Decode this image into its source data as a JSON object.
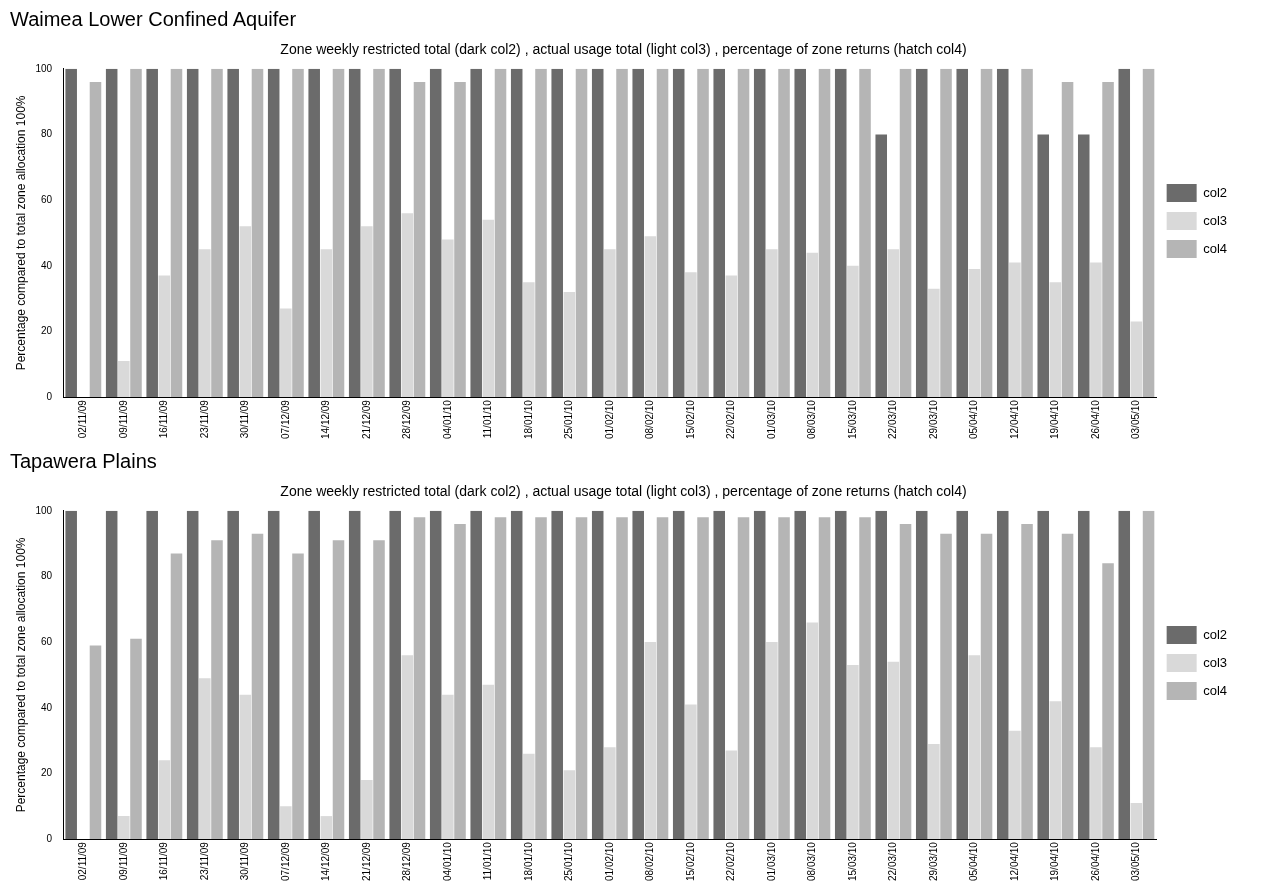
{
  "chart_data": [
    {
      "type": "bar",
      "title": "Waimea Lower Confined Aquifer",
      "subtitle": "Zone weekly restricted total (dark col2) , actual usage total (light col3) , percentage of zone returns (hatch col4)",
      "ylabel": "Percentage compared to total zone allocation 100%",
      "categories": [
        "02/11/09",
        "09/11/09",
        "16/11/09",
        "23/11/09",
        "30/11/09",
        "07/12/09",
        "14/12/09",
        "21/12/09",
        "28/12/09",
        "04/01/10",
        "11/01/10",
        "18/01/10",
        "25/01/10",
        "01/02/10",
        "08/02/10",
        "15/02/10",
        "22/02/10",
        "01/03/10",
        "08/03/10",
        "15/03/10",
        "22/03/10",
        "29/03/10",
        "05/04/10",
        "12/04/10",
        "19/04/10",
        "26/04/10",
        "03/05/10"
      ],
      "series": [
        {
          "name": "col2",
          "color": "#6b6b6b",
          "values": [
            100,
            100,
            100,
            100,
            100,
            100,
            100,
            100,
            100,
            100,
            100,
            100,
            100,
            100,
            100,
            100,
            100,
            100,
            100,
            100,
            80,
            100,
            100,
            100,
            80,
            80,
            100
          ]
        },
        {
          "name": "col3",
          "color": "#d9d9d9",
          "values": [
            0,
            11,
            37,
            45,
            52,
            27,
            45,
            52,
            56,
            48,
            54,
            35,
            32,
            45,
            49,
            38,
            37,
            45,
            44,
            40,
            45,
            33,
            39,
            41,
            35,
            41,
            23
          ]
        },
        {
          "name": "col4",
          "color": "#b5b5b5",
          "values": [
            96,
            100,
            100,
            100,
            100,
            100,
            100,
            100,
            96,
            96,
            100,
            100,
            100,
            100,
            100,
            100,
            100,
            100,
            100,
            100,
            100,
            100,
            100,
            100,
            96,
            96,
            100
          ]
        }
      ],
      "ylim": [
        0,
        100
      ],
      "yticks": [
        0,
        20,
        40,
        60,
        80,
        100
      ],
      "grid": false,
      "legend": "right"
    },
    {
      "type": "bar",
      "title": "Tapawera Plains",
      "subtitle": "Zone weekly restricted total (dark col2) , actual usage total (light col3) , percentage of zone returns (hatch col4)",
      "ylabel": "Percentage compared to total zone allocation 100%",
      "categories": [
        "02/11/09",
        "09/11/09",
        "16/11/09",
        "23/11/09",
        "30/11/09",
        "07/12/09",
        "14/12/09",
        "21/12/09",
        "28/12/09",
        "04/01/10",
        "11/01/10",
        "18/01/10",
        "25/01/10",
        "01/02/10",
        "08/02/10",
        "15/02/10",
        "22/02/10",
        "01/03/10",
        "08/03/10",
        "15/03/10",
        "22/03/10",
        "29/03/10",
        "05/04/10",
        "12/04/10",
        "19/04/10",
        "26/04/10",
        "03/05/10"
      ],
      "series": [
        {
          "name": "col2",
          "color": "#6b6b6b",
          "values": [
            100,
            100,
            100,
            100,
            100,
            100,
            100,
            100,
            100,
            100,
            100,
            100,
            100,
            100,
            100,
            100,
            100,
            100,
            100,
            100,
            100,
            100,
            100,
            100,
            100,
            100,
            100
          ]
        },
        {
          "name": "col3",
          "color": "#d9d9d9",
          "values": [
            0,
            7,
            24,
            49,
            44,
            10,
            7,
            18,
            56,
            44,
            47,
            26,
            21,
            28,
            60,
            41,
            27,
            60,
            66,
            53,
            54,
            29,
            56,
            33,
            42,
            28,
            11
          ]
        },
        {
          "name": "col4",
          "color": "#b5b5b5",
          "values": [
            59,
            61,
            87,
            91,
            93,
            87,
            91,
            91,
            98,
            96,
            98,
            98,
            98,
            98,
            98,
            98,
            98,
            98,
            98,
            98,
            96,
            93,
            93,
            96,
            93,
            84,
            100
          ]
        }
      ],
      "ylim": [
        0,
        100
      ],
      "yticks": [
        0,
        20,
        40,
        60,
        80,
        100
      ],
      "grid": false,
      "legend": "right"
    }
  ]
}
